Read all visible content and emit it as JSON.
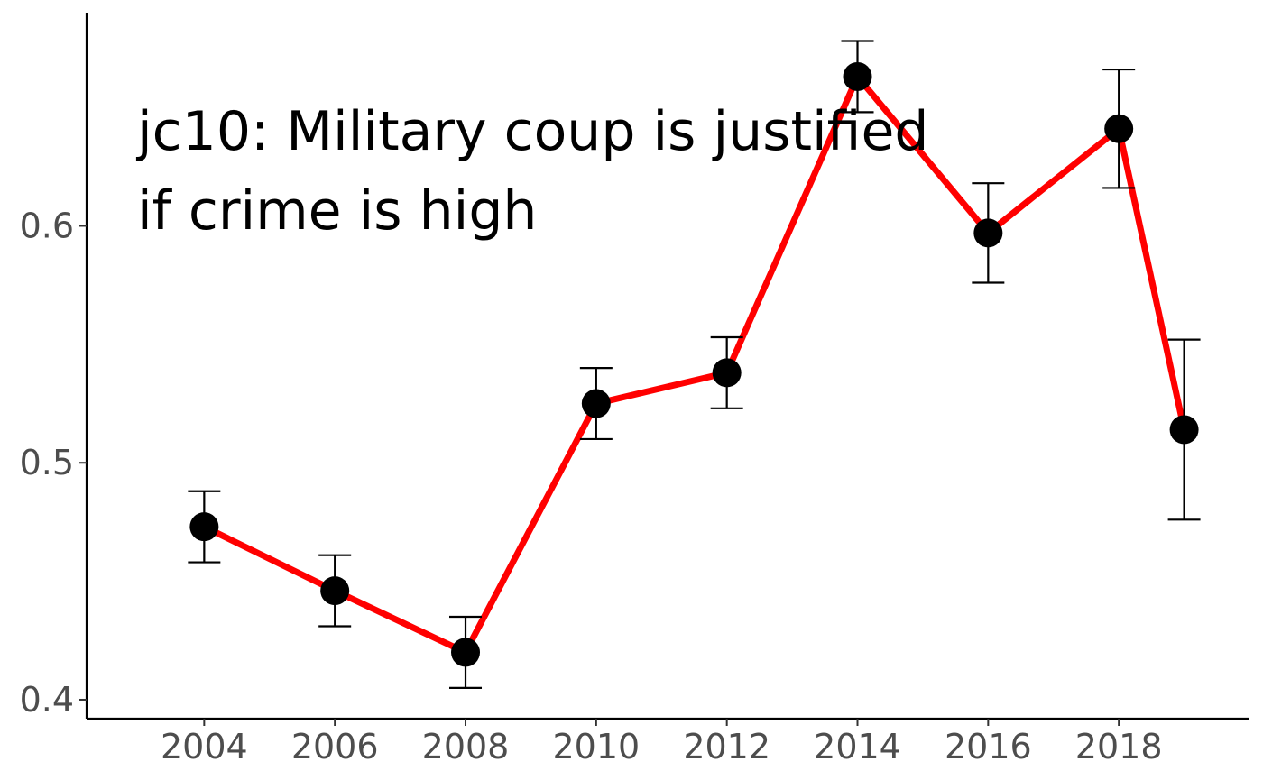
{
  "chart_data": {
    "type": "line",
    "title": "",
    "xlabel": "",
    "ylabel": "",
    "annotation": {
      "line1": "jc10: Military coup is justified",
      "line2": "if crime is high"
    },
    "x": [
      2004,
      2006,
      2008,
      2010,
      2012,
      2014,
      2016,
      2018,
      2019
    ],
    "series": [
      {
        "values": [
          0.473,
          0.446,
          0.42,
          0.525,
          0.538,
          0.663,
          0.597,
          0.641,
          0.514
        ],
        "lower": [
          0.458,
          0.431,
          0.405,
          0.51,
          0.523,
          0.648,
          0.576,
          0.616,
          0.476
        ],
        "upper": [
          0.488,
          0.461,
          0.435,
          0.54,
          0.553,
          0.678,
          0.618,
          0.666,
          0.552
        ],
        "line_color": "#ff0000",
        "marker_color": "#000000"
      }
    ],
    "xticks": [
      2004,
      2006,
      2008,
      2010,
      2012,
      2014,
      2016,
      2018
    ],
    "xtick_labels": [
      "2004",
      "2006",
      "2008",
      "2010",
      "2012",
      "2014",
      "2016",
      "2018"
    ],
    "yticks": [
      0.4,
      0.5,
      0.6
    ],
    "ytick_labels": [
      "0.4",
      "0.5",
      "0.6"
    ],
    "xlim": [
      2002.2,
      2020.0
    ],
    "ylim": [
      0.392,
      0.69
    ],
    "grid": false,
    "legend": "none"
  }
}
